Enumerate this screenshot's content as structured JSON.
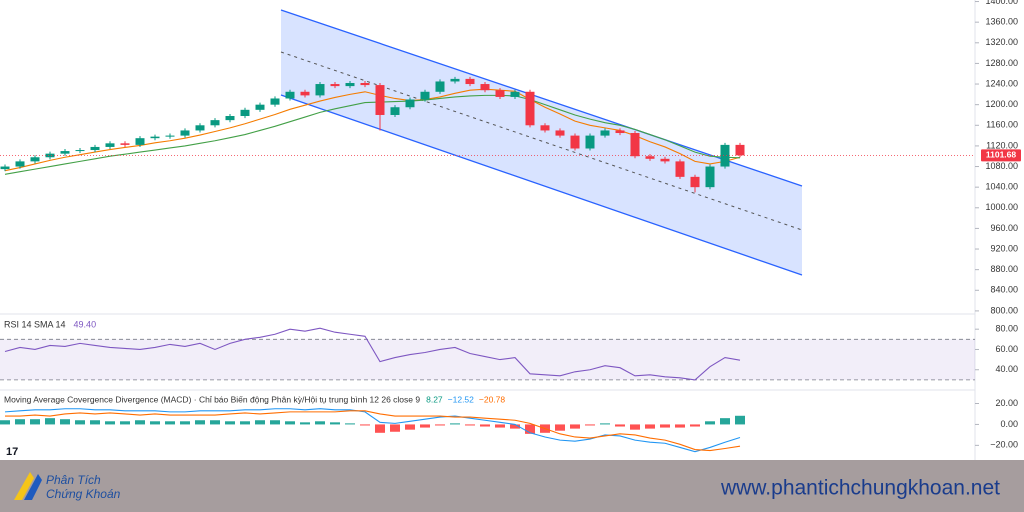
{
  "chart_data": [
    {
      "type": "candlestick",
      "open": [
        1075,
        1080,
        1090,
        1098,
        1105,
        1110,
        1112,
        1118,
        1125,
        1122,
        1135,
        1138,
        1140,
        1150,
        1160,
        1170,
        1178,
        1190,
        1200,
        1212,
        1225,
        1218,
        1240,
        1236,
        1242,
        1238,
        1180,
        1195,
        1210,
        1225,
        1245,
        1250,
        1240,
        1228,
        1215,
        1225,
        1160,
        1150,
        1140,
        1115,
        1140,
        1150,
        1145,
        1100,
        1095,
        1090,
        1060,
        1040,
        1080,
        1122
      ],
      "high": [
        1084,
        1094,
        1102,
        1109,
        1114,
        1116,
        1122,
        1129,
        1129,
        1139,
        1142,
        1144,
        1154,
        1164,
        1174,
        1182,
        1194,
        1204,
        1216,
        1229,
        1229,
        1244,
        1244,
        1246,
        1246,
        1242,
        1199,
        1214,
        1229,
        1249,
        1254,
        1254,
        1244,
        1232,
        1229,
        1229,
        1164,
        1154,
        1144,
        1144,
        1154,
        1154,
        1149,
        1104,
        1099,
        1094,
        1064,
        1084,
        1126,
        1126
      ],
      "low": [
        1071,
        1076,
        1086,
        1094,
        1101,
        1106,
        1108,
        1114,
        1118,
        1118,
        1131,
        1134,
        1136,
        1146,
        1156,
        1166,
        1174,
        1186,
        1196,
        1208,
        1214,
        1214,
        1232,
        1232,
        1234,
        1150,
        1176,
        1191,
        1206,
        1221,
        1241,
        1236,
        1224,
        1211,
        1211,
        1156,
        1146,
        1136,
        1111,
        1111,
        1136,
        1141,
        1096,
        1091,
        1086,
        1056,
        1030,
        1036,
        1076,
        1098
      ],
      "close": [
        1080,
        1090,
        1098,
        1105,
        1110,
        1112,
        1118,
        1125,
        1122,
        1135,
        1138,
        1140,
        1150,
        1160,
        1170,
        1178,
        1190,
        1200,
        1212,
        1225,
        1218,
        1240,
        1236,
        1242,
        1238,
        1180,
        1195,
        1210,
        1225,
        1245,
        1250,
        1240,
        1228,
        1215,
        1225,
        1160,
        1150,
        1140,
        1115,
        1140,
        1150,
        1145,
        1100,
        1095,
        1090,
        1060,
        1040,
        1080,
        1122,
        1101.68
      ],
      "up_color": "#089981",
      "down_color": "#f23645",
      "last_price_color": "#f23645",
      "ma": [
        {
          "color": "#f57c00",
          "values": [
            1072,
            1078,
            1085,
            1092,
            1098,
            1103,
            1108,
            1113,
            1117,
            1121,
            1126,
            1130,
            1135,
            1141,
            1148,
            1155,
            1163,
            1172,
            1181,
            1191,
            1199,
            1207,
            1214,
            1220,
            1225,
            1218,
            1212,
            1208,
            1210,
            1215,
            1222,
            1228,
            1230,
            1228,
            1226,
            1210,
            1195,
            1182,
            1168,
            1160,
            1155,
            1150,
            1140,
            1128,
            1118,
            1105,
            1090,
            1085,
            1090,
            1098
          ]
        },
        {
          "color": "#43a047",
          "values": [
            1065,
            1070,
            1075,
            1080,
            1085,
            1090,
            1095,
            1100,
            1104,
            1108,
            1112,
            1116,
            1120,
            1125,
            1130,
            1136,
            1142,
            1150,
            1158,
            1167,
            1176,
            1185,
            1192,
            1198,
            1204,
            1205,
            1206,
            1207,
            1209,
            1212,
            1215,
            1217,
            1218,
            1218,
            1217,
            1210,
            1200,
            1190,
            1180,
            1172,
            1165,
            1160,
            1152,
            1142,
            1132,
            1120,
            1108,
            1100,
            1098,
            1097
          ]
        }
      ],
      "ylim": [
        794,
        1403
      ],
      "yticks": [
        {
          "value": 800,
          "label": "800.00"
        },
        {
          "value": 840,
          "label": "840.00"
        },
        {
          "value": 880,
          "label": "880.00"
        },
        {
          "value": 920,
          "label": "920.00"
        },
        {
          "value": 960,
          "label": "960.00"
        },
        {
          "value": 1000,
          "label": "1000.00"
        },
        {
          "value": 1040,
          "label": "1040.00"
        },
        {
          "value": 1080,
          "label": "1080.00"
        },
        {
          "value": 1120,
          "label": "1120.00"
        },
        {
          "value": 1160,
          "label": "1160.00"
        },
        {
          "value": 1200,
          "label": "1200.00"
        },
        {
          "value": 1240,
          "label": "1240.00"
        },
        {
          "value": 1280,
          "label": "1280.00"
        },
        {
          "value": 1320,
          "label": "1320.00"
        },
        {
          "value": 1360,
          "label": "1360.00"
        },
        {
          "value": 1400,
          "label": "1400.00"
        }
      ]
    },
    {
      "type": "line",
      "title": "RSI 14 SMA 14",
      "current": {
        "value": 49.4,
        "label": "49.40"
      },
      "color": "#7e57c2",
      "values": [
        58,
        62,
        60,
        64,
        63,
        66,
        64,
        62,
        61,
        60,
        62,
        65,
        63,
        66,
        60,
        66,
        70,
        72,
        75,
        80,
        78,
        81,
        77,
        75,
        73,
        48,
        52,
        55,
        57,
        60,
        62,
        56,
        53,
        50,
        52,
        36,
        35,
        34,
        38,
        40,
        44,
        42,
        34,
        35,
        33,
        32,
        30,
        43,
        52,
        49.4
      ],
      "bands": [
        30,
        70
      ],
      "ylim": [
        22,
        93
      ],
      "yticks": [
        {
          "value": 40,
          "label": "40.00"
        },
        {
          "value": 60,
          "label": "60.00"
        },
        {
          "value": 80,
          "label": "80.00"
        }
      ]
    },
    {
      "type": "bar",
      "title": "Moving Average Covergence Divergence (MACD) · Chỉ báo Biến động Phân kỳ/Hội tụ trung bình 12 26 close 9",
      "current": [
        {
          "value": 8.27,
          "label": "8.27",
          "color": "#089981"
        },
        {
          "value": -12.52,
          "label": "−12.52",
          "color": "#2196f3"
        },
        {
          "value": -20.78,
          "label": "−20.78",
          "color": "#ff6d00"
        }
      ],
      "histogram": {
        "up_color": "#26a69a",
        "down_color": "#ff5252",
        "values": [
          4,
          5,
          5,
          6,
          5,
          4,
          4,
          3,
          3,
          4,
          3,
          3,
          3,
          4,
          4,
          3,
          3,
          4,
          4,
          3,
          2,
          3,
          2,
          1,
          -1,
          -8,
          -7,
          -5,
          -3,
          -1,
          1,
          -1,
          -2,
          -3,
          -4,
          -9,
          -8,
          -6,
          -4,
          -1,
          1,
          -2,
          -5,
          -4,
          -3,
          -3,
          -2,
          3,
          6,
          8.27
        ]
      },
      "lines": [
        {
          "color": "#2196f3",
          "values": [
            12,
            13,
            14,
            14,
            15,
            15,
            14,
            14,
            13,
            13,
            13,
            12,
            12,
            13,
            13,
            13,
            14,
            14,
            15,
            15,
            14,
            15,
            14,
            14,
            12,
            2,
            1,
            3,
            5,
            7,
            8,
            6,
            4,
            2,
            0,
            -8,
            -12,
            -15,
            -16,
            -14,
            -10,
            -11,
            -15,
            -17,
            -18,
            -22,
            -26,
            -22,
            -17,
            -12.52
          ]
        },
        {
          "color": "#ff6d00",
          "values": [
            8,
            8,
            9,
            8,
            10,
            11,
            10,
            11,
            10,
            9,
            10,
            9,
            9,
            9,
            9,
            10,
            11,
            10,
            11,
            12,
            12,
            12,
            12,
            13,
            13,
            10,
            8,
            8,
            8,
            8,
            7,
            7,
            6,
            5,
            4,
            1,
            -4,
            -9,
            -12,
            -13,
            -11,
            -9,
            -10,
            -13,
            -15,
            -19,
            -24,
            -25,
            -23,
            -20.78
          ]
        }
      ],
      "ylim": [
        -34,
        31
      ],
      "yticks": [
        {
          "value": -20,
          "label": "−20.00"
        },
        {
          "value": 0,
          "label": "0.00"
        },
        {
          "value": 20,
          "label": "20.00"
        }
      ]
    }
  ],
  "footer": {
    "brand_line1": "Phân Tích",
    "brand_line2": "Chứng Khoán",
    "website": "www.phantichchungkhoan.net"
  }
}
